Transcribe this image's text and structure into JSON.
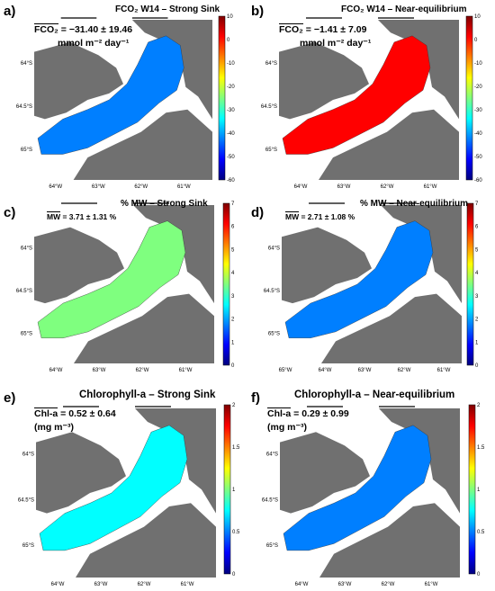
{
  "chart_data": [
    {
      "type": "heatmap",
      "panel": "a)",
      "title": "FCO₂ W14 – Strong Sink",
      "stat_var": "FCO₂",
      "stat_value": "= −31.40 ± 19.46",
      "stat_unit": "mmol m⁻² day⁻¹",
      "colorbar_ticks": [
        "10",
        "0",
        "-10",
        "-20",
        "-30",
        "-40",
        "-50",
        "-60"
      ],
      "colorbar_range": [
        -60,
        10
      ],
      "lat_ticks": [
        "64°S",
        "64.5°S",
        "65°S"
      ],
      "lon_ticks": [
        "64°W",
        "63°W",
        "62°W",
        "61°W"
      ],
      "fill_level": 0.3
    },
    {
      "type": "heatmap",
      "panel": "b)",
      "title": "FCO₂ W14 – Near-equilibrium",
      "stat_var": "FCO₂",
      "stat_value": "= −1.41 ± 7.09",
      "stat_unit": "mmol m⁻² day⁻¹",
      "colorbar_ticks": [
        "10",
        "0",
        "-10",
        "-20",
        "-30",
        "-40",
        "-50",
        "-60"
      ],
      "colorbar_range": [
        -60,
        10
      ],
      "lat_ticks": [
        "64°S",
        "64.5°S",
        "65°S"
      ],
      "lon_ticks": [
        "64°W",
        "63°W",
        "62°W",
        "61°W"
      ],
      "fill_level": 0.85
    },
    {
      "type": "heatmap",
      "panel": "c)",
      "title": "% MW – Strong Sink",
      "stat_var": "MW",
      "stat_value": "= 3.71 ± 1.31 %",
      "stat_unit": "",
      "colorbar_ticks": [
        "7",
        "6",
        "5",
        "4",
        "3",
        "2",
        "1",
        "0"
      ],
      "colorbar_range": [
        0,
        7
      ],
      "lat_ticks": [
        "64°S",
        "64.5°S",
        "65°S"
      ],
      "lon_ticks": [
        "64°W",
        "63°W",
        "62°W",
        "61°W"
      ],
      "fill_level": 0.5
    },
    {
      "type": "heatmap",
      "panel": "d)",
      "title": "% MW – Near-equilibrium",
      "stat_var": "MW",
      "stat_value": "= 2.71 ± 1.08 %",
      "stat_unit": "",
      "colorbar_ticks": [
        "7",
        "6",
        "5",
        "4",
        "3",
        "2",
        "1",
        "0"
      ],
      "colorbar_range": [
        0,
        7
      ],
      "lat_ticks": [
        "64°S",
        "64.5°S",
        "65°S"
      ],
      "lon_ticks": [
        "65°W",
        "64°W",
        "63°W",
        "62°W",
        "61°W"
      ],
      "fill_level": 0.3
    },
    {
      "type": "heatmap",
      "panel": "e)",
      "title": "Chlorophyll-a – Strong Sink",
      "stat_var": "Chl-a",
      "stat_value": "= 0.52 ± 0.64",
      "stat_unit": "(mg m⁻³)",
      "colorbar_ticks": [
        "2",
        "1.5",
        "1",
        "0.5",
        "0"
      ],
      "colorbar_range": [
        0,
        2
      ],
      "lat_ticks": [
        "64°S",
        "64.5°S",
        "65°S"
      ],
      "lon_ticks": [
        "64°W",
        "63°W",
        "62°W",
        "61°W"
      ],
      "fill_level": 0.4
    },
    {
      "type": "heatmap",
      "panel": "f)",
      "title": "Chlorophyll-a – Near-equilibrium",
      "stat_var": "Chl-a",
      "stat_value": "= 0.29 ± 0.99",
      "stat_unit": "(mg m⁻³)",
      "colorbar_ticks": [
        "2",
        "1.5",
        "1",
        "0.5",
        "0"
      ],
      "colorbar_range": [
        0,
        2
      ],
      "lat_ticks": [
        "64°S",
        "64.5°S",
        "65°S"
      ],
      "lon_ticks": [
        "64°W",
        "63°W",
        "62°W",
        "61°W"
      ],
      "fill_level": 0.2
    }
  ],
  "colors": {
    "land": "#707070",
    "ocean": "#ffffff"
  }
}
